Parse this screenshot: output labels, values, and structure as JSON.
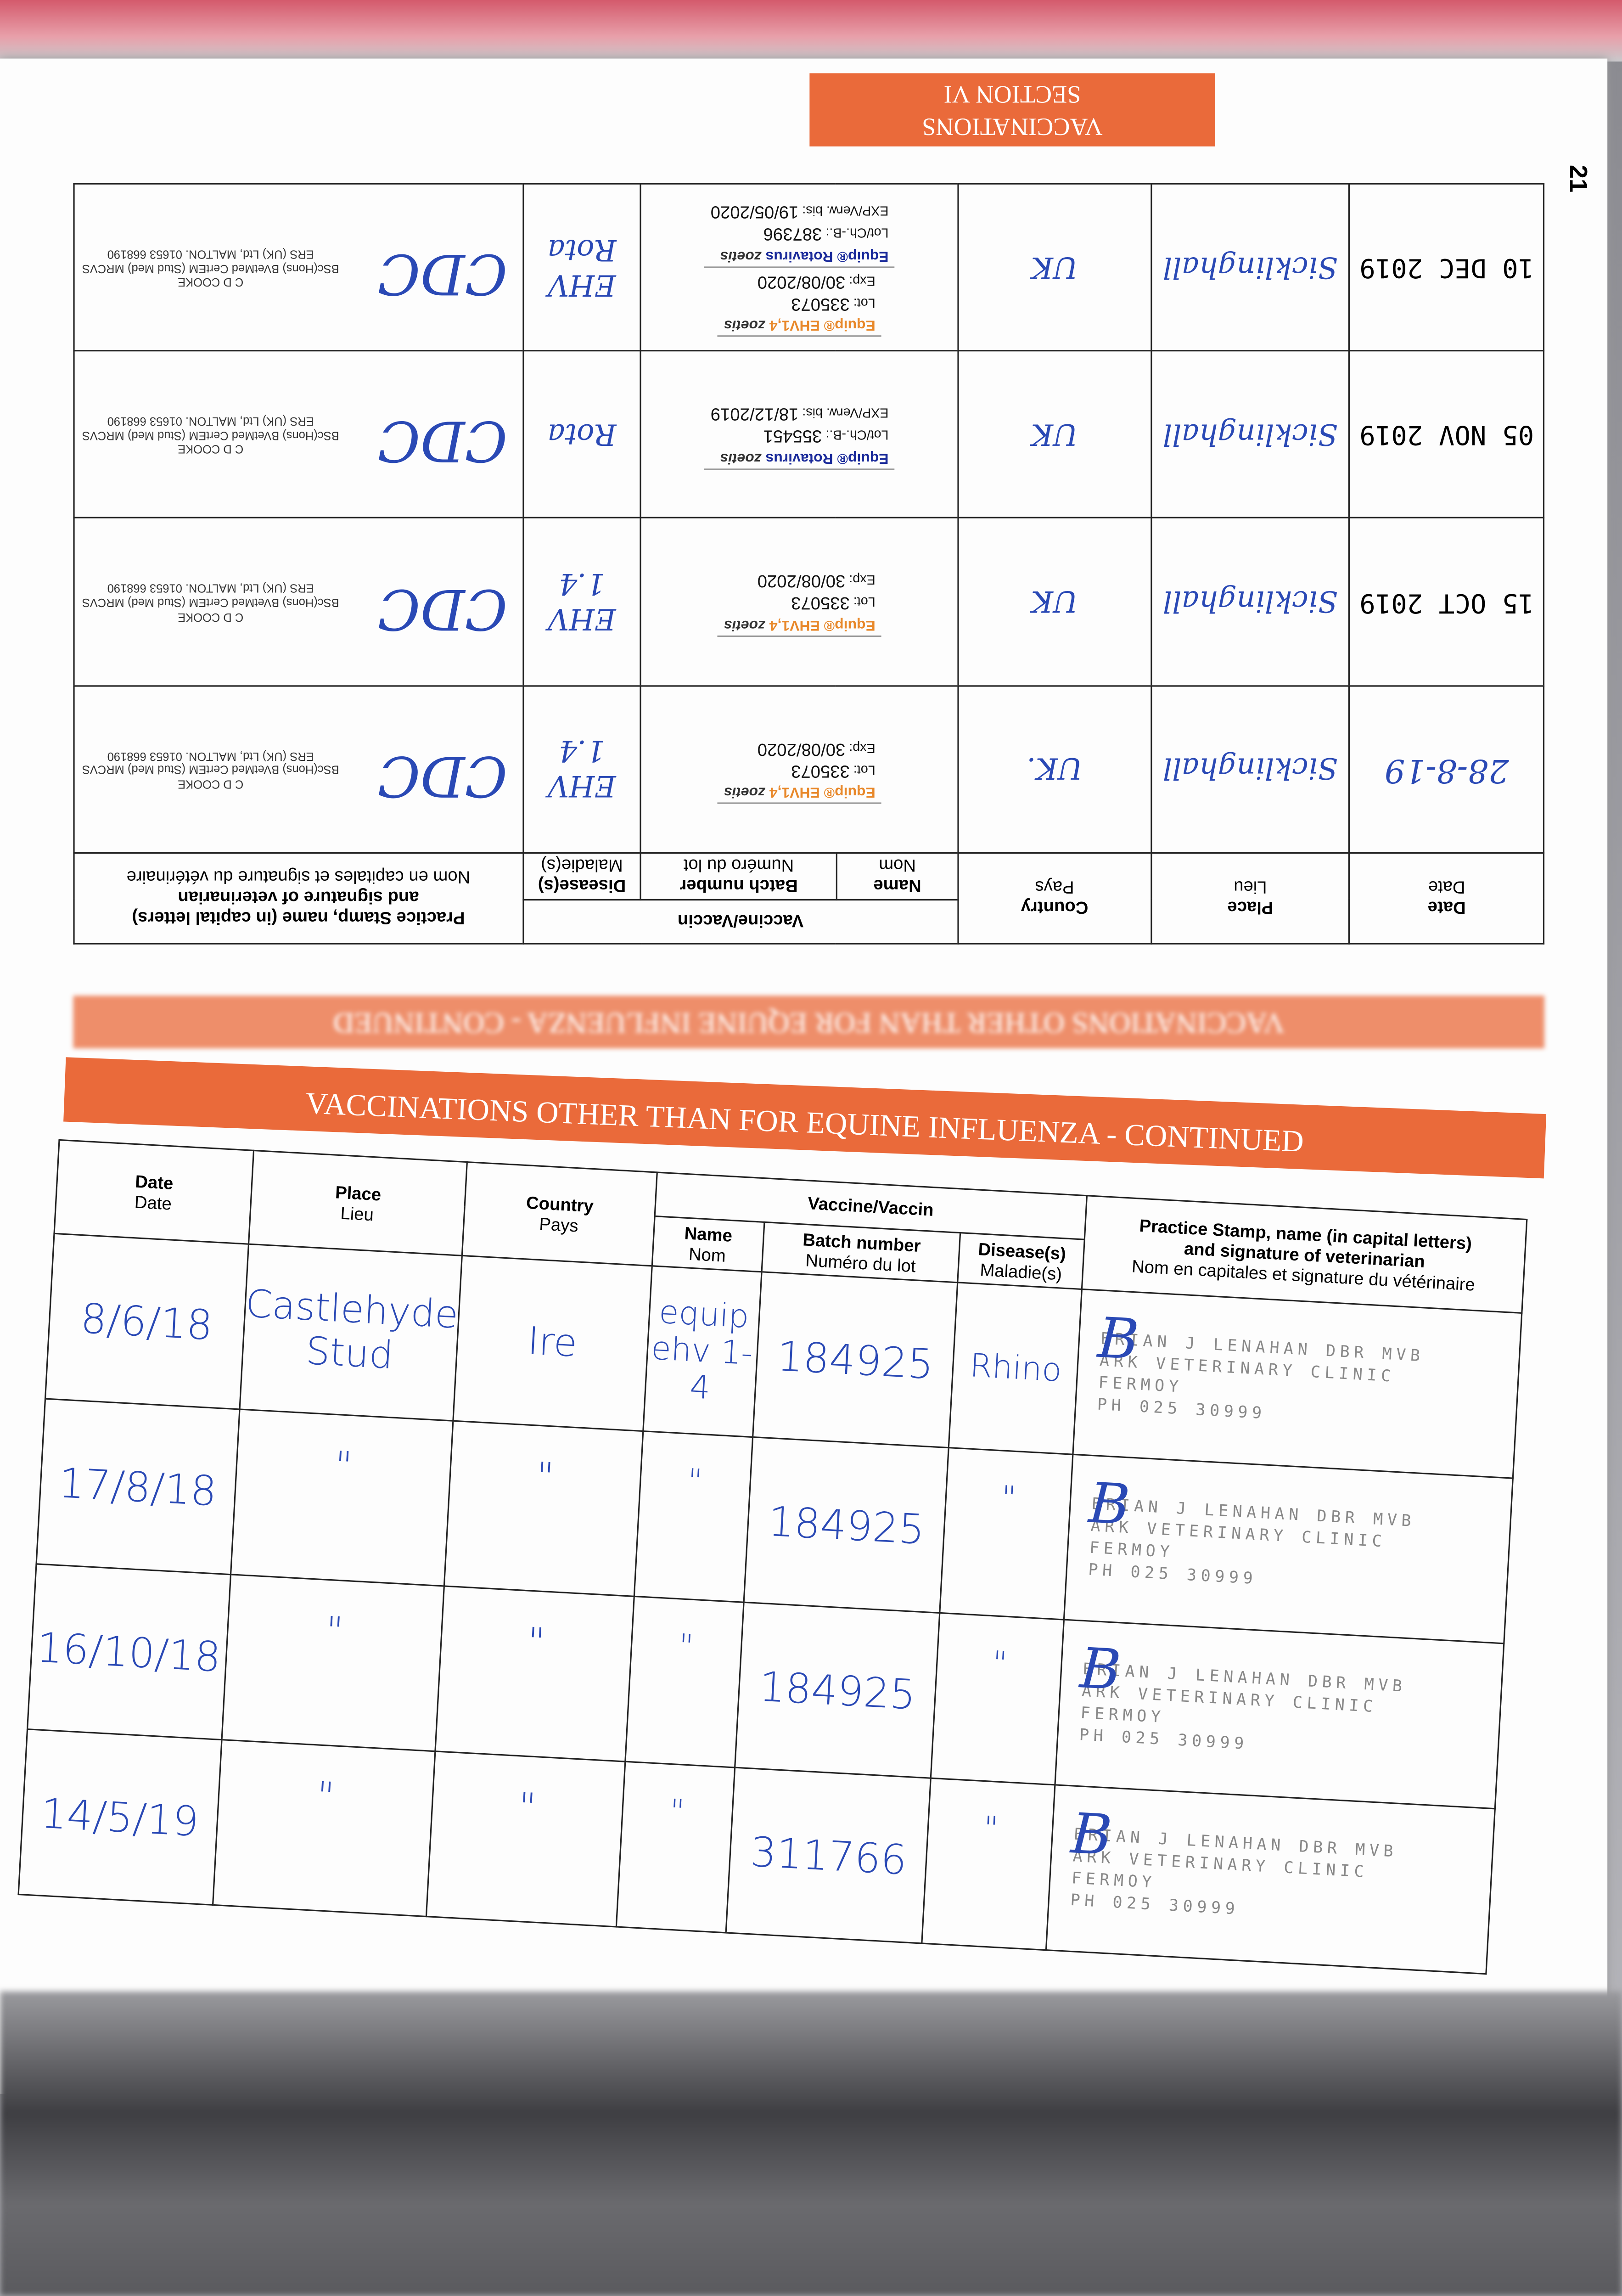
{
  "page_number": "21",
  "top_section": {
    "banner": {
      "line1": "VACCINATIONS",
      "line2": "SECTION VI"
    },
    "headers": {
      "date": [
        "Date",
        "Date"
      ],
      "place": [
        "Place",
        "Lieu"
      ],
      "country": [
        "Country",
        "Pays"
      ],
      "vaccine": "Vaccine/Vaccin",
      "name": [
        "Name",
        "Nom"
      ],
      "batch": [
        "Batch number",
        "Numéro du lot"
      ],
      "disease": [
        "Disease(s)",
        "Maladie(s)"
      ],
      "practice": [
        "Practice Stamp, name (in capital letters)",
        "and signature of veterinarian",
        "Nom en capitales et signature du vétérinaire"
      ]
    },
    "stamp": {
      "name": "C D COOKE",
      "quals": "BSc(Hons) BVetMed CertEM (Stud Med) MRCVS",
      "address": "ERS (UK) Ltd, MALTON. 01653 668190"
    },
    "rows": [
      {
        "date": "28-8-19",
        "place": "Sicklinghall",
        "country": "UK.",
        "labels": [
          {
            "product": "Equip® EHV1,4",
            "brand": "zoetis",
            "lot_label": "Lot:",
            "lot": "335073",
            "exp_label": "Exp:",
            "exp": "30/08/2020",
            "color": "#e8882a"
          }
        ],
        "disease": "EHV 1.4",
        "signature": "CDC"
      },
      {
        "date": "15 OCT 2019",
        "place": "Sicklinghall",
        "country": "UK",
        "labels": [
          {
            "product": "Equip® EHV1,4",
            "brand": "zoetis",
            "lot_label": "Lot:",
            "lot": "335073",
            "exp_label": "Exp:",
            "exp": "30/08/2020",
            "color": "#e8882a"
          }
        ],
        "disease": "EHV 1.4",
        "signature": "CDC"
      },
      {
        "date": "05 NOV 2019",
        "place": "Sicklinghall",
        "country": "UK",
        "labels": [
          {
            "product": "Equip® Rotavirus",
            "brand": "zoetis",
            "lot_label": "Lot/Ch.-B.:",
            "lot": "355451",
            "exp_label": "EXP/Verw. bis:",
            "exp": "18/12/2019",
            "color": "#1a2a9a"
          }
        ],
        "disease": "Rota",
        "signature": "CDC"
      },
      {
        "date": "10 DEC 2019",
        "place": "Sicklinghall",
        "country": "UK",
        "labels": [
          {
            "product": "Equip® EHV1,4",
            "brand": "zoetis",
            "lot_label": "Lot:",
            "lot": "335073",
            "exp_label": "Exp:",
            "exp": "30/08/2020",
            "color": "#e8882a"
          },
          {
            "product": "Equip® Rotavirus",
            "brand": "zoetis",
            "lot_label": "Lot/Ch.-B.:",
            "lot": "387396",
            "exp_label": "EXP/Verw. bis:",
            "exp": "19/05/2020",
            "color": "#1a2a9a"
          }
        ],
        "disease": "EHV Rota",
        "signature": "CDC"
      }
    ]
  },
  "bottom_section": {
    "banner": "VACCINATIONS OTHER THAN FOR EQUINE INFLUENZA - CONTINUED",
    "headers": {
      "date": [
        "Date",
        "Date"
      ],
      "place": [
        "Place",
        "Lieu"
      ],
      "country": [
        "Country",
        "Pays"
      ],
      "vaccine": "Vaccine/Vaccin",
      "name": [
        "Name",
        "Nom"
      ],
      "batch": [
        "Batch number",
        "Numéro du lot"
      ],
      "disease": [
        "Disease(s)",
        "Maladie(s)"
      ],
      "practice": [
        "Practice Stamp, name (in capital letters)",
        "and signature of veterinarian",
        "Nom en capitales et signature du vétérinaire"
      ]
    },
    "stamp": {
      "line1": "BRIAN J LENAHAN DBR MVB",
      "line2": "ARK VETERINARY CLINIC",
      "line3": "FERMOY",
      "line4": "PH 025 30999"
    },
    "rows": [
      {
        "date": "8/6/18",
        "place": "Castlehyde Stud",
        "country": "Ire",
        "name": "equip ehv 1-4",
        "batch": "184925",
        "disease": "Rhino",
        "signature": "B"
      },
      {
        "date": "17/8/18",
        "place": "\"",
        "country": "\"",
        "name": "\"",
        "batch": "184925",
        "disease": "\"",
        "signature": "B"
      },
      {
        "date": "16/10/18",
        "place": "\"",
        "country": "\"",
        "name": "\"",
        "batch": "184925",
        "disease": "\"",
        "signature": "B"
      },
      {
        "date": "14/5/19",
        "place": "\"",
        "country": "\"",
        "name": "\"",
        "batch": "311766",
        "disease": "\"",
        "signature": "B"
      }
    ]
  },
  "colors": {
    "banner": "#ea6a3a",
    "ink": "#2a49b5"
  }
}
